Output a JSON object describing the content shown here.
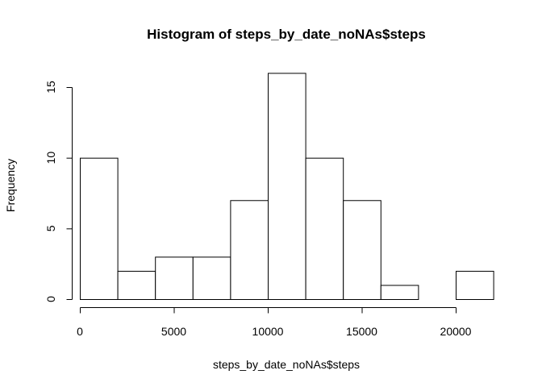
{
  "chart_data": {
    "type": "bar",
    "title": "Histogram of steps_by_date_noNAs$steps",
    "xlabel": "steps_by_date_noNAs$steps",
    "ylabel": "Frequency",
    "bins": [
      {
        "from": 0,
        "to": 2000,
        "count": 10
      },
      {
        "from": 2000,
        "to": 4000,
        "count": 2
      },
      {
        "from": 4000,
        "to": 6000,
        "count": 3
      },
      {
        "from": 6000,
        "to": 8000,
        "count": 3
      },
      {
        "from": 8000,
        "to": 10000,
        "count": 7
      },
      {
        "from": 10000,
        "to": 12000,
        "count": 16
      },
      {
        "from": 12000,
        "to": 14000,
        "count": 10
      },
      {
        "from": 14000,
        "to": 16000,
        "count": 7
      },
      {
        "from": 16000,
        "to": 18000,
        "count": 1
      },
      {
        "from": 18000,
        "to": 20000,
        "count": 0
      },
      {
        "from": 20000,
        "to": 22000,
        "count": 2
      }
    ],
    "xlim": [
      0,
      22000
    ],
    "ylim": [
      0,
      16
    ],
    "x_ticks": [
      0,
      5000,
      10000,
      15000,
      20000
    ],
    "y_ticks": [
      0,
      5,
      10,
      15
    ],
    "grid": false,
    "bar_fill": "#ffffff",
    "bar_stroke": "#000000"
  }
}
